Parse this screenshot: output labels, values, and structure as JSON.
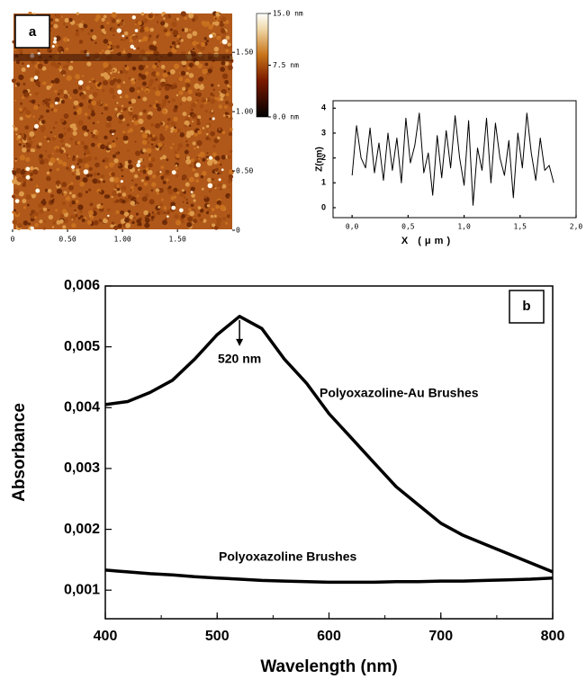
{
  "afm_image": {
    "panel_label": "a",
    "xlim": [
      0,
      1.99
    ],
    "ylim": [
      0,
      1.82
    ],
    "xticks": [
      0,
      {
        "value": 0.5,
        "label": "0.50"
      },
      {
        "value": 1,
        "label": "1.00"
      },
      {
        "value": 1.5,
        "label": "1.50"
      }
    ],
    "yticks": [
      0,
      {
        "value": 0.5,
        "label": "0.50"
      },
      {
        "value": 1,
        "label": "1.00"
      },
      {
        "value": 1.5,
        "label": "1.50"
      }
    ],
    "colorbar": {
      "lim": [
        0,
        15
      ],
      "ticks": [
        {
          "value": 15,
          "label": "15.0 nm"
        },
        {
          "value": 7.5,
          "label": "7.5 nm"
        },
        {
          "value": 0,
          "label": "0.0 nm"
        }
      ]
    }
  },
  "chart_data": [
    {
      "type": "line",
      "xlabel": "X (μm)",
      "ylabel": "Z(nm)",
      "x": [
        0,
        0.04,
        0.08,
        0.12,
        0.16,
        0.2,
        0.24,
        0.28,
        0.32,
        0.36,
        0.4,
        0.44,
        0.48,
        0.52,
        0.56,
        0.6,
        0.64,
        0.68,
        0.72,
        0.76,
        0.8,
        0.84,
        0.88,
        0.92,
        0.96,
        1,
        1.04,
        1.08,
        1.12,
        1.16,
        1.2,
        1.24,
        1.28,
        1.32,
        1.36,
        1.4,
        1.44,
        1.48,
        1.52,
        1.56,
        1.6,
        1.64,
        1.68,
        1.72,
        1.76,
        1.8
      ],
      "series": [
        {
          "color": "#000000",
          "values": [
            1.3,
            3.3,
            2.0,
            1.6,
            3.2,
            1.4,
            2.6,
            1.1,
            3.0,
            1.5,
            2.8,
            1.0,
            3.6,
            1.8,
            2.5,
            3.8,
            1.4,
            2.2,
            0.5,
            2.9,
            1.2,
            3.1,
            1.6,
            3.7,
            2.0,
            0.9,
            3.5,
            0.1,
            2.4,
            1.5,
            3.6,
            1.0,
            3.4,
            2.0,
            1.3,
            2.7,
            0.4,
            3.0,
            1.6,
            3.8,
            2.2,
            1.1,
            2.8,
            1.5,
            1.7,
            1.0
          ]
        }
      ],
      "xlim": [
        -0.17,
        2.0
      ],
      "ylim": [
        -0.4,
        4.3
      ],
      "xticks": [
        {
          "value": 0,
          "label": "0,0"
        },
        {
          "value": 0.5,
          "label": "0,5"
        },
        {
          "value": 1,
          "label": "1,0"
        },
        {
          "value": 1.5,
          "label": "1,5"
        },
        {
          "value": 2,
          "label": "2,0"
        }
      ],
      "yticks": [
        0,
        1,
        2,
        3,
        4
      ]
    },
    {
      "type": "line",
      "panel_label": "b",
      "xlabel": "Wavelength (nm)",
      "ylabel": "Absorbance",
      "x": [
        400,
        420,
        440,
        460,
        480,
        500,
        520,
        540,
        560,
        580,
        600,
        620,
        640,
        660,
        680,
        700,
        720,
        740,
        760,
        780,
        800
      ],
      "series": [
        {
          "name": "Polyoxazoline-Au Brushes",
          "color": "#000000",
          "values": [
            0.00405,
            0.0041,
            0.00425,
            0.00445,
            0.0048,
            0.0052,
            0.0055,
            0.0053,
            0.0048,
            0.0044,
            0.0039,
            0.0035,
            0.0031,
            0.0027,
            0.0024,
            0.0021,
            0.0019,
            0.00175,
            0.0016,
            0.00145,
            0.0013
          ]
        },
        {
          "name": "Polyoxazoline Brushes",
          "color": "#000000",
          "values": [
            0.00133,
            0.0013,
            0.00127,
            0.00125,
            0.00122,
            0.0012,
            0.00118,
            0.00116,
            0.00115,
            0.00114,
            0.00113,
            0.00113,
            0.00113,
            0.00114,
            0.00114,
            0.00115,
            0.00115,
            0.00116,
            0.00117,
            0.00118,
            0.0012
          ]
        }
      ],
      "annotation": {
        "text": "520 nm",
        "x": 520
      },
      "xlim": [
        400,
        800
      ],
      "ylim": [
        0.00053,
        0.006
      ],
      "xticks": [
        400,
        500,
        600,
        700,
        800
      ],
      "yticks": [
        {
          "value": 0.001,
          "label": "0,001"
        },
        {
          "value": 0.002,
          "label": "0,002"
        },
        {
          "value": 0.003,
          "label": "0,003"
        },
        {
          "value": 0.004,
          "label": "0,004"
        },
        {
          "value": 0.005,
          "label": "0,005"
        },
        {
          "value": 0.006,
          "label": "0,006"
        }
      ]
    }
  ]
}
